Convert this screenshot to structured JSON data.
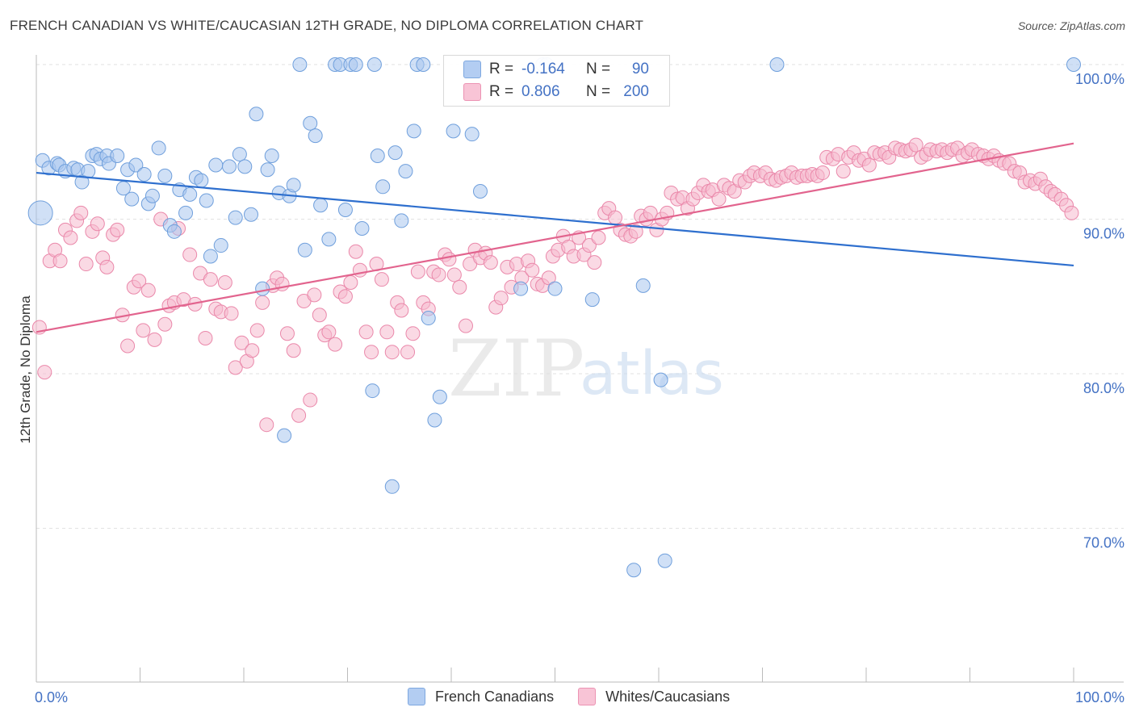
{
  "title": "FRENCH CANADIAN VS WHITE/CAUCASIAN 12TH GRADE, NO DIPLOMA CORRELATION CHART",
  "source": "Source: ZipAtlas.com",
  "watermark": {
    "zip": "ZIP",
    "atlas": "atlas"
  },
  "colors": {
    "blue_fill": "#a9c6ef",
    "blue_stroke": "#6f9fdc",
    "blue_line": "#2e6fce",
    "pink_fill": "#f6b9ce",
    "pink_stroke": "#ea88aa",
    "pink_line": "#e2648e",
    "value_text": "#4472c4",
    "grid": "#e2e2e2"
  },
  "legend": {
    "rows": [
      {
        "r_label": "R =",
        "r_value": "-0.164",
        "n_label": "N =",
        "n_value": "90"
      },
      {
        "r_label": "R =",
        "r_value": "0.806",
        "n_label": "N =",
        "n_value": "200"
      }
    ]
  },
  "chart_data": {
    "type": "scatter",
    "xlabel": "",
    "ylabel": "12th Grade, No Diploma",
    "xlim": [
      0,
      100
    ],
    "ylim": [
      60,
      100
    ],
    "x_tick_labels": [
      "0.0%",
      "100.0%"
    ],
    "y_tick_labels": [
      "100.0%",
      "90.0%",
      "80.0%",
      "70.0%"
    ],
    "y_ticks": [
      100,
      90,
      80,
      70
    ],
    "grid": true,
    "series": [
      {
        "name": "French Canadians",
        "trend": [
          [
            0,
            93.0
          ],
          [
            100,
            87.0
          ]
        ],
        "points": [
          [
            0.4,
            90.4
          ],
          [
            0.6,
            93.8
          ],
          [
            1.2,
            93.3
          ],
          [
            2,
            93.6
          ],
          [
            2.2,
            93.5
          ],
          [
            2.8,
            93.1
          ],
          [
            3.6,
            93.3
          ],
          [
            4,
            93.2
          ],
          [
            4.4,
            92.4
          ],
          [
            5,
            93.1
          ],
          [
            5.4,
            94.1
          ],
          [
            5.8,
            94.2
          ],
          [
            6.2,
            93.9
          ],
          [
            6.8,
            94.1
          ],
          [
            7,
            93.6
          ],
          [
            7.8,
            94.1
          ],
          [
            8.4,
            92.0
          ],
          [
            8.8,
            93.2
          ],
          [
            9.2,
            91.3
          ],
          [
            9.6,
            93.5
          ],
          [
            10.4,
            92.9
          ],
          [
            10.8,
            91.0
          ],
          [
            11.2,
            91.5
          ],
          [
            11.8,
            94.6
          ],
          [
            12.4,
            92.8
          ],
          [
            12.9,
            89.6
          ],
          [
            13.3,
            89.2
          ],
          [
            13.8,
            91.9
          ],
          [
            14.4,
            90.4
          ],
          [
            14.8,
            91.6
          ],
          [
            15.4,
            92.7
          ],
          [
            15.9,
            92.5
          ],
          [
            16.4,
            91.2
          ],
          [
            16.8,
            87.6
          ],
          [
            17.3,
            93.5
          ],
          [
            17.8,
            88.3
          ],
          [
            18.6,
            93.4
          ],
          [
            19.2,
            90.1
          ],
          [
            19.6,
            94.2
          ],
          [
            20.1,
            93.4
          ],
          [
            20.7,
            90.3
          ],
          [
            21.2,
            96.8
          ],
          [
            21.8,
            85.5
          ],
          [
            22.3,
            93.2
          ],
          [
            22.7,
            94.1
          ],
          [
            23.4,
            91.7
          ],
          [
            23.9,
            76.0
          ],
          [
            24.4,
            91.5
          ],
          [
            24.8,
            92.2
          ],
          [
            25.4,
            100.0
          ],
          [
            25.9,
            88.0
          ],
          [
            26.4,
            96.2
          ],
          [
            26.9,
            95.4
          ],
          [
            27.4,
            90.9
          ],
          [
            28.2,
            88.7
          ],
          [
            28.8,
            100.0
          ],
          [
            29.3,
            100.0
          ],
          [
            29.8,
            90.6
          ],
          [
            30.3,
            100.0
          ],
          [
            30.8,
            100.0
          ],
          [
            31.4,
            89.4
          ],
          [
            32.6,
            100.0
          ],
          [
            32.4,
            78.9
          ],
          [
            32.9,
            94.1
          ],
          [
            33.4,
            92.1
          ],
          [
            34.3,
            72.7
          ],
          [
            34.6,
            94.3
          ],
          [
            35.2,
            89.9
          ],
          [
            35.6,
            93.1
          ],
          [
            36.4,
            95.7
          ],
          [
            36.7,
            100.0
          ],
          [
            37.3,
            100.0
          ],
          [
            37.8,
            83.6
          ],
          [
            38.4,
            77.0
          ],
          [
            38.9,
            78.5
          ],
          [
            40.2,
            95.7
          ],
          [
            42.0,
            95.5
          ],
          [
            42.8,
            91.8
          ],
          [
            46.7,
            85.5
          ],
          [
            48.8,
            100.0
          ],
          [
            49.2,
            100.0
          ],
          [
            50.0,
            85.5
          ],
          [
            53.6,
            84.8
          ],
          [
            57.6,
            67.3
          ],
          [
            58.5,
            85.7
          ],
          [
            60.6,
            67.9
          ],
          [
            60.2,
            79.6
          ],
          [
            71.4,
            100.0
          ],
          [
            100.0,
            100.0
          ]
        ]
      },
      {
        "name": "Whites/Caucasians",
        "trend": [
          [
            0,
            82.7
          ],
          [
            100,
            94.9
          ]
        ],
        "points": [
          [
            0.3,
            83.0
          ],
          [
            0.8,
            80.1
          ],
          [
            1.3,
            87.3
          ],
          [
            1.8,
            88.0
          ],
          [
            2.3,
            87.3
          ],
          [
            2.8,
            89.3
          ],
          [
            3.3,
            88.8
          ],
          [
            3.9,
            89.9
          ],
          [
            4.3,
            90.4
          ],
          [
            4.8,
            87.1
          ],
          [
            5.4,
            89.2
          ],
          [
            5.9,
            89.7
          ],
          [
            6.4,
            87.5
          ],
          [
            6.8,
            86.9
          ],
          [
            7.4,
            89.0
          ],
          [
            7.8,
            89.3
          ],
          [
            8.3,
            83.8
          ],
          [
            8.8,
            81.8
          ],
          [
            9.4,
            85.6
          ],
          [
            9.9,
            86.0
          ],
          [
            10.3,
            82.8
          ],
          [
            10.8,
            85.4
          ],
          [
            11.4,
            82.2
          ],
          [
            12.0,
            90.0
          ],
          [
            12.4,
            83.2
          ],
          [
            12.8,
            84.4
          ],
          [
            13.3,
            84.6
          ],
          [
            13.7,
            89.4
          ],
          [
            14.2,
            84.8
          ],
          [
            14.8,
            87.7
          ],
          [
            15.3,
            84.5
          ],
          [
            15.8,
            86.5
          ],
          [
            16.3,
            82.3
          ],
          [
            16.8,
            86.1
          ],
          [
            17.3,
            84.2
          ],
          [
            17.8,
            84.0
          ],
          [
            18.2,
            85.9
          ],
          [
            18.8,
            83.9
          ],
          [
            19.2,
            80.4
          ],
          [
            19.8,
            82.0
          ],
          [
            20.3,
            80.8
          ],
          [
            20.8,
            81.5
          ],
          [
            21.3,
            82.8
          ],
          [
            21.8,
            84.6
          ],
          [
            22.2,
            76.7
          ],
          [
            22.8,
            85.7
          ],
          [
            23.2,
            86.2
          ],
          [
            23.7,
            85.8
          ],
          [
            24.2,
            82.6
          ],
          [
            24.8,
            81.5
          ],
          [
            25.3,
            77.3
          ],
          [
            25.8,
            84.7
          ],
          [
            26.4,
            78.3
          ],
          [
            26.8,
            85.1
          ],
          [
            27.3,
            83.8
          ],
          [
            27.8,
            82.5
          ],
          [
            28.2,
            82.7
          ],
          [
            28.8,
            81.9
          ],
          [
            29.3,
            85.3
          ],
          [
            29.8,
            85.0
          ],
          [
            30.3,
            85.9
          ],
          [
            30.8,
            87.9
          ],
          [
            31.2,
            86.7
          ],
          [
            31.8,
            82.7
          ],
          [
            32.3,
            81.4
          ],
          [
            32.8,
            87.1
          ],
          [
            33.3,
            86.1
          ],
          [
            33.8,
            82.7
          ],
          [
            34.3,
            81.4
          ],
          [
            34.8,
            84.6
          ],
          [
            35.2,
            84.1
          ],
          [
            35.8,
            81.4
          ],
          [
            36.3,
            82.6
          ],
          [
            36.8,
            86.6
          ],
          [
            37.3,
            84.6
          ],
          [
            37.8,
            84.2
          ],
          [
            38.3,
            86.6
          ],
          [
            38.8,
            86.4
          ],
          [
            39.4,
            87.7
          ],
          [
            39.8,
            87.4
          ],
          [
            40.3,
            86.4
          ],
          [
            40.8,
            85.6
          ],
          [
            41.4,
            83.1
          ],
          [
            41.8,
            87.1
          ],
          [
            42.3,
            88.0
          ],
          [
            42.8,
            87.5
          ],
          [
            43.3,
            87.8
          ],
          [
            43.8,
            87.2
          ],
          [
            44.3,
            84.3
          ],
          [
            44.8,
            84.9
          ],
          [
            45.4,
            86.9
          ],
          [
            45.8,
            85.6
          ],
          [
            46.3,
            87.1
          ],
          [
            46.8,
            86.2
          ],
          [
            47.4,
            87.3
          ],
          [
            47.8,
            86.7
          ],
          [
            48.3,
            85.8
          ],
          [
            48.8,
            85.7
          ],
          [
            49.4,
            86.2
          ],
          [
            49.8,
            87.6
          ],
          [
            50.3,
            88.0
          ],
          [
            50.8,
            88.9
          ],
          [
            51.3,
            88.2
          ],
          [
            51.8,
            87.6
          ],
          [
            52.3,
            88.8
          ],
          [
            52.8,
            87.7
          ],
          [
            53.3,
            88.3
          ],
          [
            53.8,
            87.2
          ],
          [
            54.2,
            88.8
          ],
          [
            54.8,
            90.4
          ],
          [
            55.2,
            90.7
          ],
          [
            55.8,
            90.1
          ],
          [
            56.3,
            89.3
          ],
          [
            56.8,
            89.0
          ],
          [
            57.3,
            88.9
          ],
          [
            57.8,
            89.2
          ],
          [
            58.3,
            90.2
          ],
          [
            58.8,
            90.0
          ],
          [
            59.2,
            90.4
          ],
          [
            59.8,
            89.3
          ],
          [
            60.3,
            90.0
          ],
          [
            60.8,
            90.4
          ],
          [
            61.2,
            91.7
          ],
          [
            61.8,
            91.3
          ],
          [
            62.3,
            91.4
          ],
          [
            62.8,
            90.7
          ],
          [
            63.3,
            91.3
          ],
          [
            63.8,
            91.7
          ],
          [
            64.3,
            92.2
          ],
          [
            64.8,
            91.8
          ],
          [
            65.2,
            91.9
          ],
          [
            65.8,
            91.3
          ],
          [
            66.3,
            92.2
          ],
          [
            66.8,
            92.0
          ],
          [
            67.3,
            91.8
          ],
          [
            67.8,
            92.5
          ],
          [
            68.3,
            92.4
          ],
          [
            68.8,
            92.8
          ],
          [
            69.2,
            93.0
          ],
          [
            69.8,
            92.8
          ],
          [
            70.3,
            93.0
          ],
          [
            70.8,
            92.6
          ],
          [
            71.3,
            92.5
          ],
          [
            71.8,
            92.7
          ],
          [
            72.3,
            92.8
          ],
          [
            72.8,
            93.0
          ],
          [
            73.3,
            92.7
          ],
          [
            73.8,
            92.8
          ],
          [
            74.3,
            92.8
          ],
          [
            74.8,
            92.9
          ],
          [
            75.3,
            92.8
          ],
          [
            75.8,
            93.0
          ],
          [
            76.2,
            94.0
          ],
          [
            76.8,
            93.9
          ],
          [
            77.3,
            94.2
          ],
          [
            77.8,
            93.1
          ],
          [
            78.3,
            94.0
          ],
          [
            78.8,
            94.3
          ],
          [
            79.3,
            93.8
          ],
          [
            79.8,
            93.9
          ],
          [
            80.3,
            93.5
          ],
          [
            80.8,
            94.3
          ],
          [
            81.3,
            94.2
          ],
          [
            81.8,
            94.3
          ],
          [
            82.2,
            94.0
          ],
          [
            82.8,
            94.6
          ],
          [
            83.3,
            94.5
          ],
          [
            83.8,
            94.4
          ],
          [
            84.3,
            94.5
          ],
          [
            84.8,
            94.8
          ],
          [
            85.3,
            94.0
          ],
          [
            85.8,
            94.2
          ],
          [
            86.2,
            94.5
          ],
          [
            86.8,
            94.4
          ],
          [
            87.3,
            94.5
          ],
          [
            87.8,
            94.3
          ],
          [
            88.3,
            94.5
          ],
          [
            88.8,
            94.6
          ],
          [
            89.3,
            94.1
          ],
          [
            89.8,
            94.3
          ],
          [
            90.2,
            94.5
          ],
          [
            90.8,
            94.2
          ],
          [
            91.3,
            94.1
          ],
          [
            91.8,
            93.9
          ],
          [
            92.3,
            94.1
          ],
          [
            92.8,
            93.8
          ],
          [
            93.3,
            93.6
          ],
          [
            93.8,
            93.6
          ],
          [
            94.3,
            93.1
          ],
          [
            94.8,
            93.0
          ],
          [
            95.3,
            92.4
          ],
          [
            95.8,
            92.5
          ],
          [
            96.3,
            92.3
          ],
          [
            96.8,
            92.6
          ],
          [
            97.3,
            92.1
          ],
          [
            97.8,
            91.8
          ],
          [
            98.2,
            91.6
          ],
          [
            98.8,
            91.3
          ],
          [
            99.3,
            90.9
          ],
          [
            99.8,
            90.4
          ]
        ]
      }
    ]
  },
  "bottom_legend": [
    "French Canadians",
    "Whites/Caucasians"
  ]
}
